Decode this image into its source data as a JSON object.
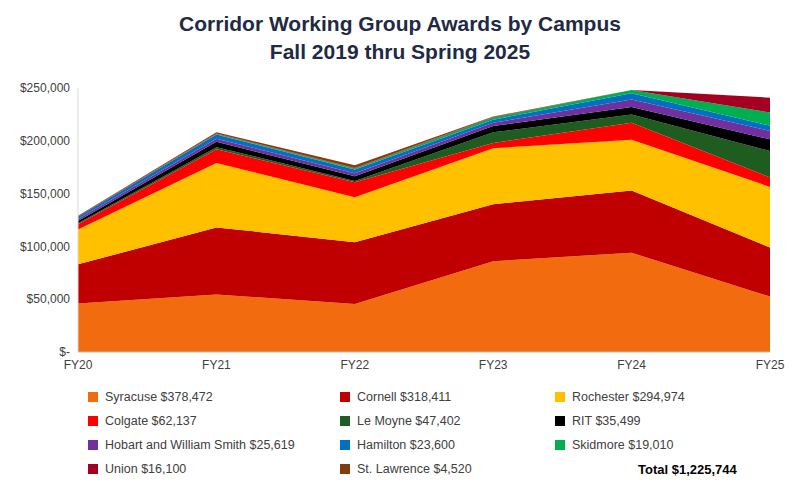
{
  "chart_data": {
    "type": "area",
    "title": "Corridor Working Group Awards by Campus",
    "subtitle": "Fall 2019 thru Spring 2025",
    "categories": [
      "FY20",
      "FY21",
      "FY22",
      "FY23",
      "FY24",
      "FY25"
    ],
    "series": [
      {
        "name": "Syracuse $378,472",
        "color": "#f26b0f",
        "values": [
          46000,
          54500,
          45500,
          86000,
          94000,
          52472
        ]
      },
      {
        "name": "Cornell $318,411",
        "color": "#c00000",
        "values": [
          37000,
          63500,
          58500,
          54000,
          59000,
          46411
        ]
      },
      {
        "name": "Rochester $294,974",
        "color": "#ffc000",
        "values": [
          33000,
          61000,
          42500,
          53000,
          48000,
          57474
        ]
      },
      {
        "name": "Colgate $62,137",
        "color": "#ff0000",
        "values": [
          5000,
          13000,
          14137,
          5000,
          16000,
          9000
        ]
      },
      {
        "name": "Le Moyne $47,402",
        "color": "#1e5c20",
        "values": [
          1000,
          2000,
          1402,
          10000,
          8000,
          25000
        ]
      },
      {
        "name": "RIT $35,499",
        "color": "#000000",
        "values": [
          2000,
          5000,
          4499,
          6000,
          7000,
          11000
        ]
      },
      {
        "name": "Hobart and William Smith $25,619",
        "color": "#7030a0",
        "values": [
          2000,
          3000,
          2619,
          3000,
          7000,
          8000
        ]
      },
      {
        "name": "Hamilton $23,600",
        "color": "#0070c0",
        "values": [
          2000,
          4000,
          3600,
          3000,
          6000,
          5000
        ]
      },
      {
        "name": "Skidmore $19,010",
        "color": "#00b050",
        "values": [
          0,
          500,
          1000,
          2000,
          3000,
          12510
        ]
      },
      {
        "name": "Union $16,100",
        "color": "#a50021",
        "values": [
          500,
          500,
          500,
          500,
          100,
          14000
        ]
      },
      {
        "name": "St. Lawrence $4,520",
        "color": "#843c0c",
        "values": [
          500,
          1000,
          2500,
          500,
          20,
          0
        ]
      }
    ],
    "ylim": [
      0,
      250000
    ],
    "yticks": [
      {
        "value": 0,
        "label": "$-"
      },
      {
        "value": 50000,
        "label": "$50,000"
      },
      {
        "value": 100000,
        "label": "$100,000"
      },
      {
        "value": 150000,
        "label": "$150,000"
      },
      {
        "value": 200000,
        "label": "$200,000"
      },
      {
        "value": 250000,
        "label": "$250,000"
      }
    ],
    "stacked": true,
    "grid": false,
    "legend": "bottom",
    "annotations": [
      "Total $1,225,744"
    ]
  }
}
